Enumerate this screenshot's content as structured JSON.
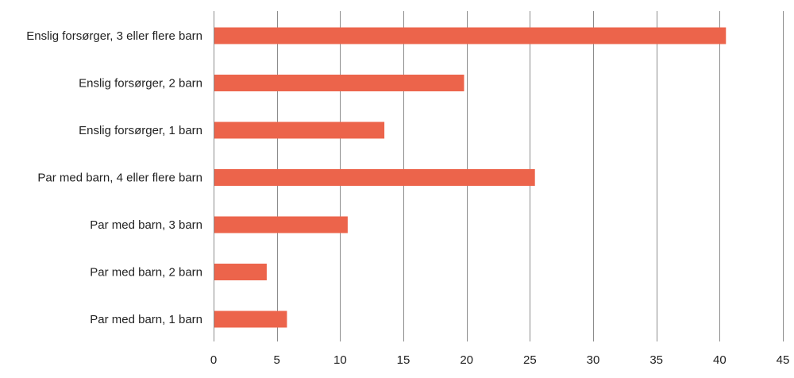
{
  "chart_data": {
    "type": "bar",
    "orientation": "horizontal",
    "categories": [
      "Enslig forsørger, 3 eller flere barn",
      "Enslig forsørger, 2 barn",
      "Enslig forsørger, 1 barn",
      "Par med barn, 4 eller flere barn",
      "Par med barn, 3 barn",
      "Par med barn, 2 barn",
      "Par med barn, 1 barn"
    ],
    "values": [
      40.5,
      19.8,
      13.5,
      25.4,
      10.6,
      4.2,
      5.8
    ],
    "xlim": [
      0,
      45
    ],
    "xticks": [
      0,
      5,
      10,
      15,
      20,
      25,
      30,
      35,
      40,
      45
    ],
    "tick_labels": [
      "0",
      "5",
      "10",
      "15",
      "20",
      "25",
      "30",
      "35",
      "40",
      "45"
    ],
    "grid": "vertical",
    "bar_color": "#ec644b",
    "grid_color": "#8c8c8c"
  }
}
